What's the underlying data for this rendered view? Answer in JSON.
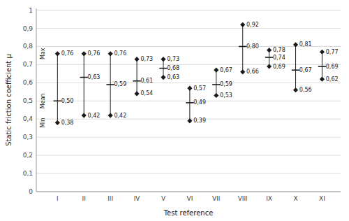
{
  "chart_data": {
    "type": "hilo",
    "xlabel": "Test reference",
    "ylabel": "Static friction coefficient μ",
    "categories": [
      "I",
      "II",
      "III",
      "IV",
      "V",
      "VI",
      "VII",
      "VIII",
      "IX",
      "X",
      "XI"
    ],
    "series": [
      {
        "name": "Max",
        "marker": "diamond",
        "values": [
          0.76,
          0.76,
          0.76,
          0.73,
          0.73,
          0.57,
          0.67,
          0.92,
          0.78,
          0.81,
          0.77
        ],
        "value_labels": [
          "0,76",
          "0,76",
          "0,76",
          "0,73",
          "0,73",
          "0,57",
          "0,67",
          "0,92",
          "0,78",
          "0,81",
          "0,77"
        ]
      },
      {
        "name": "Mean",
        "marker": "tick",
        "values": [
          0.5,
          0.63,
          0.59,
          0.61,
          0.68,
          0.49,
          0.59,
          0.8,
          0.74,
          0.67,
          0.69
        ],
        "value_labels": [
          "0,50",
          "0,63",
          "0,59",
          "0,61",
          "0,68",
          "0,49",
          "0,59",
          "0,80",
          "0,74",
          "0,67",
          "0,69"
        ]
      },
      {
        "name": "Min",
        "marker": "diamond",
        "values": [
          0.38,
          0.42,
          0.42,
          0.54,
          0.63,
          0.39,
          0.53,
          0.66,
          0.69,
          0.56,
          0.62
        ],
        "value_labels": [
          "0,38",
          "0,42",
          "0,42",
          "0,54",
          "0,63",
          "0,39",
          "0,53",
          "0,66",
          "0,69",
          "0,56",
          "0,62"
        ]
      }
    ],
    "color": "#1a1a1a",
    "ylim": [
      0,
      1.01
    ],
    "yticks": [
      0,
      {
        "value": 0.1,
        "label": "0,1"
      },
      {
        "value": 0.2,
        "label": "0,2"
      },
      {
        "value": 0.3,
        "label": "0,3"
      },
      {
        "value": 0.4,
        "label": "0,4"
      },
      {
        "value": 0.5,
        "label": "0,5"
      },
      {
        "value": 0.6,
        "label": "0,6"
      },
      {
        "value": 0.7,
        "label": "0,7"
      },
      {
        "value": 0.8,
        "label": "0,8"
      },
      {
        "value": 0.9,
        "label": "0,9"
      },
      1
    ],
    "grid": true,
    "data_labels": true
  }
}
